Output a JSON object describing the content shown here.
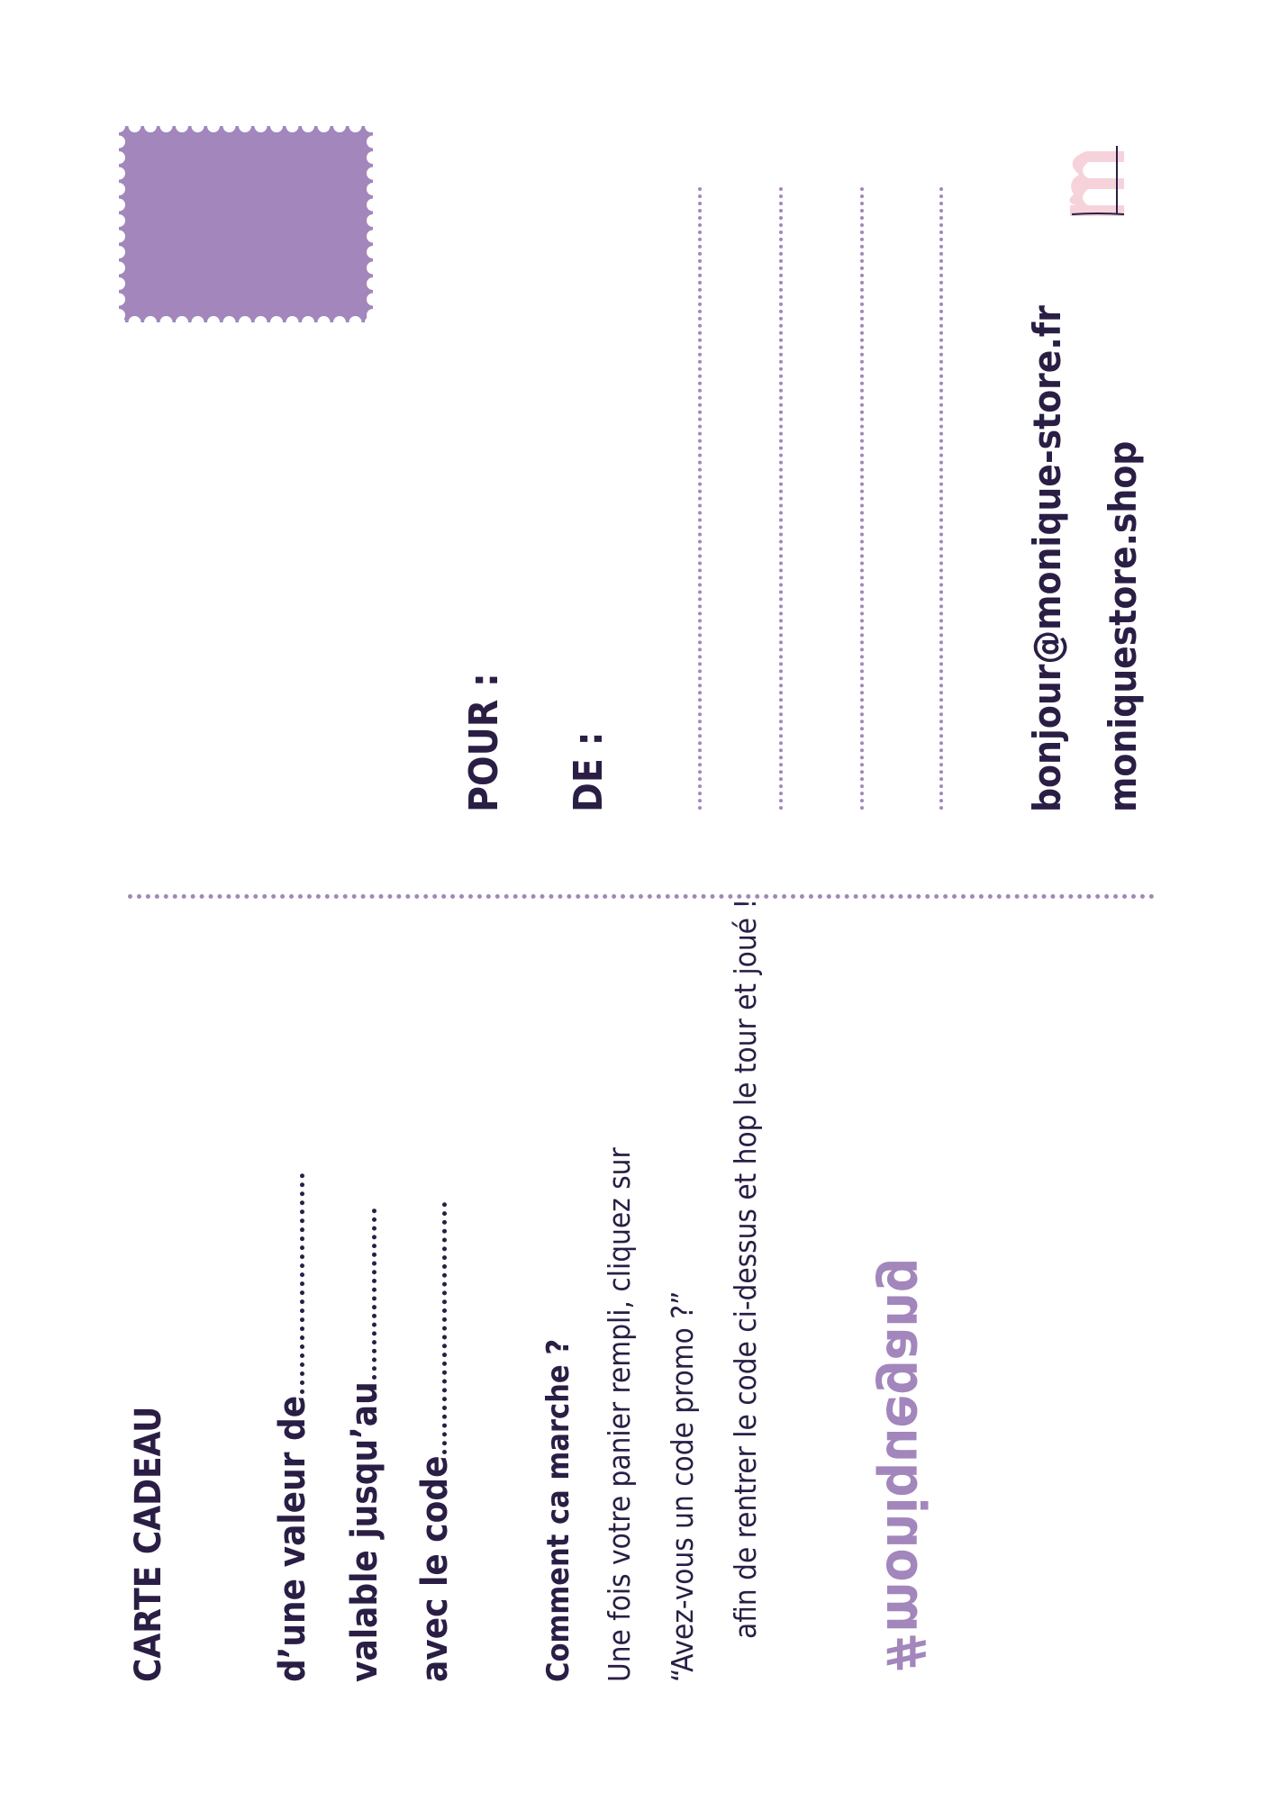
{
  "card": {
    "title": "CARTE CADEAU",
    "value_label": "d’une valeur de",
    "valid_label": "valable jusqu’au",
    "code_label": "avec le code",
    "howto_title": "Comment ca marche ?",
    "howto_line1": "Une fois votre panier rempli, cliquez sur",
    "howto_line2": "“Avez-vous un code promo ?”",
    "howto_line3": "afin de rentrer le code ci-dessus et hop le tour et joué !",
    "hashtag": "#moniquegang"
  },
  "address": {
    "to_label": "POUR :",
    "from_label": "DE :",
    "email": "bonjour@monique-store.fr",
    "website": "moniquestore.shop"
  },
  "colors": {
    "ink": "#2a1e45",
    "accent": "#a286bc",
    "logo_pink": "#f6d3da"
  },
  "icons": {
    "stamp": "postage-stamp-icon",
    "logo": "monique-m-logo"
  }
}
